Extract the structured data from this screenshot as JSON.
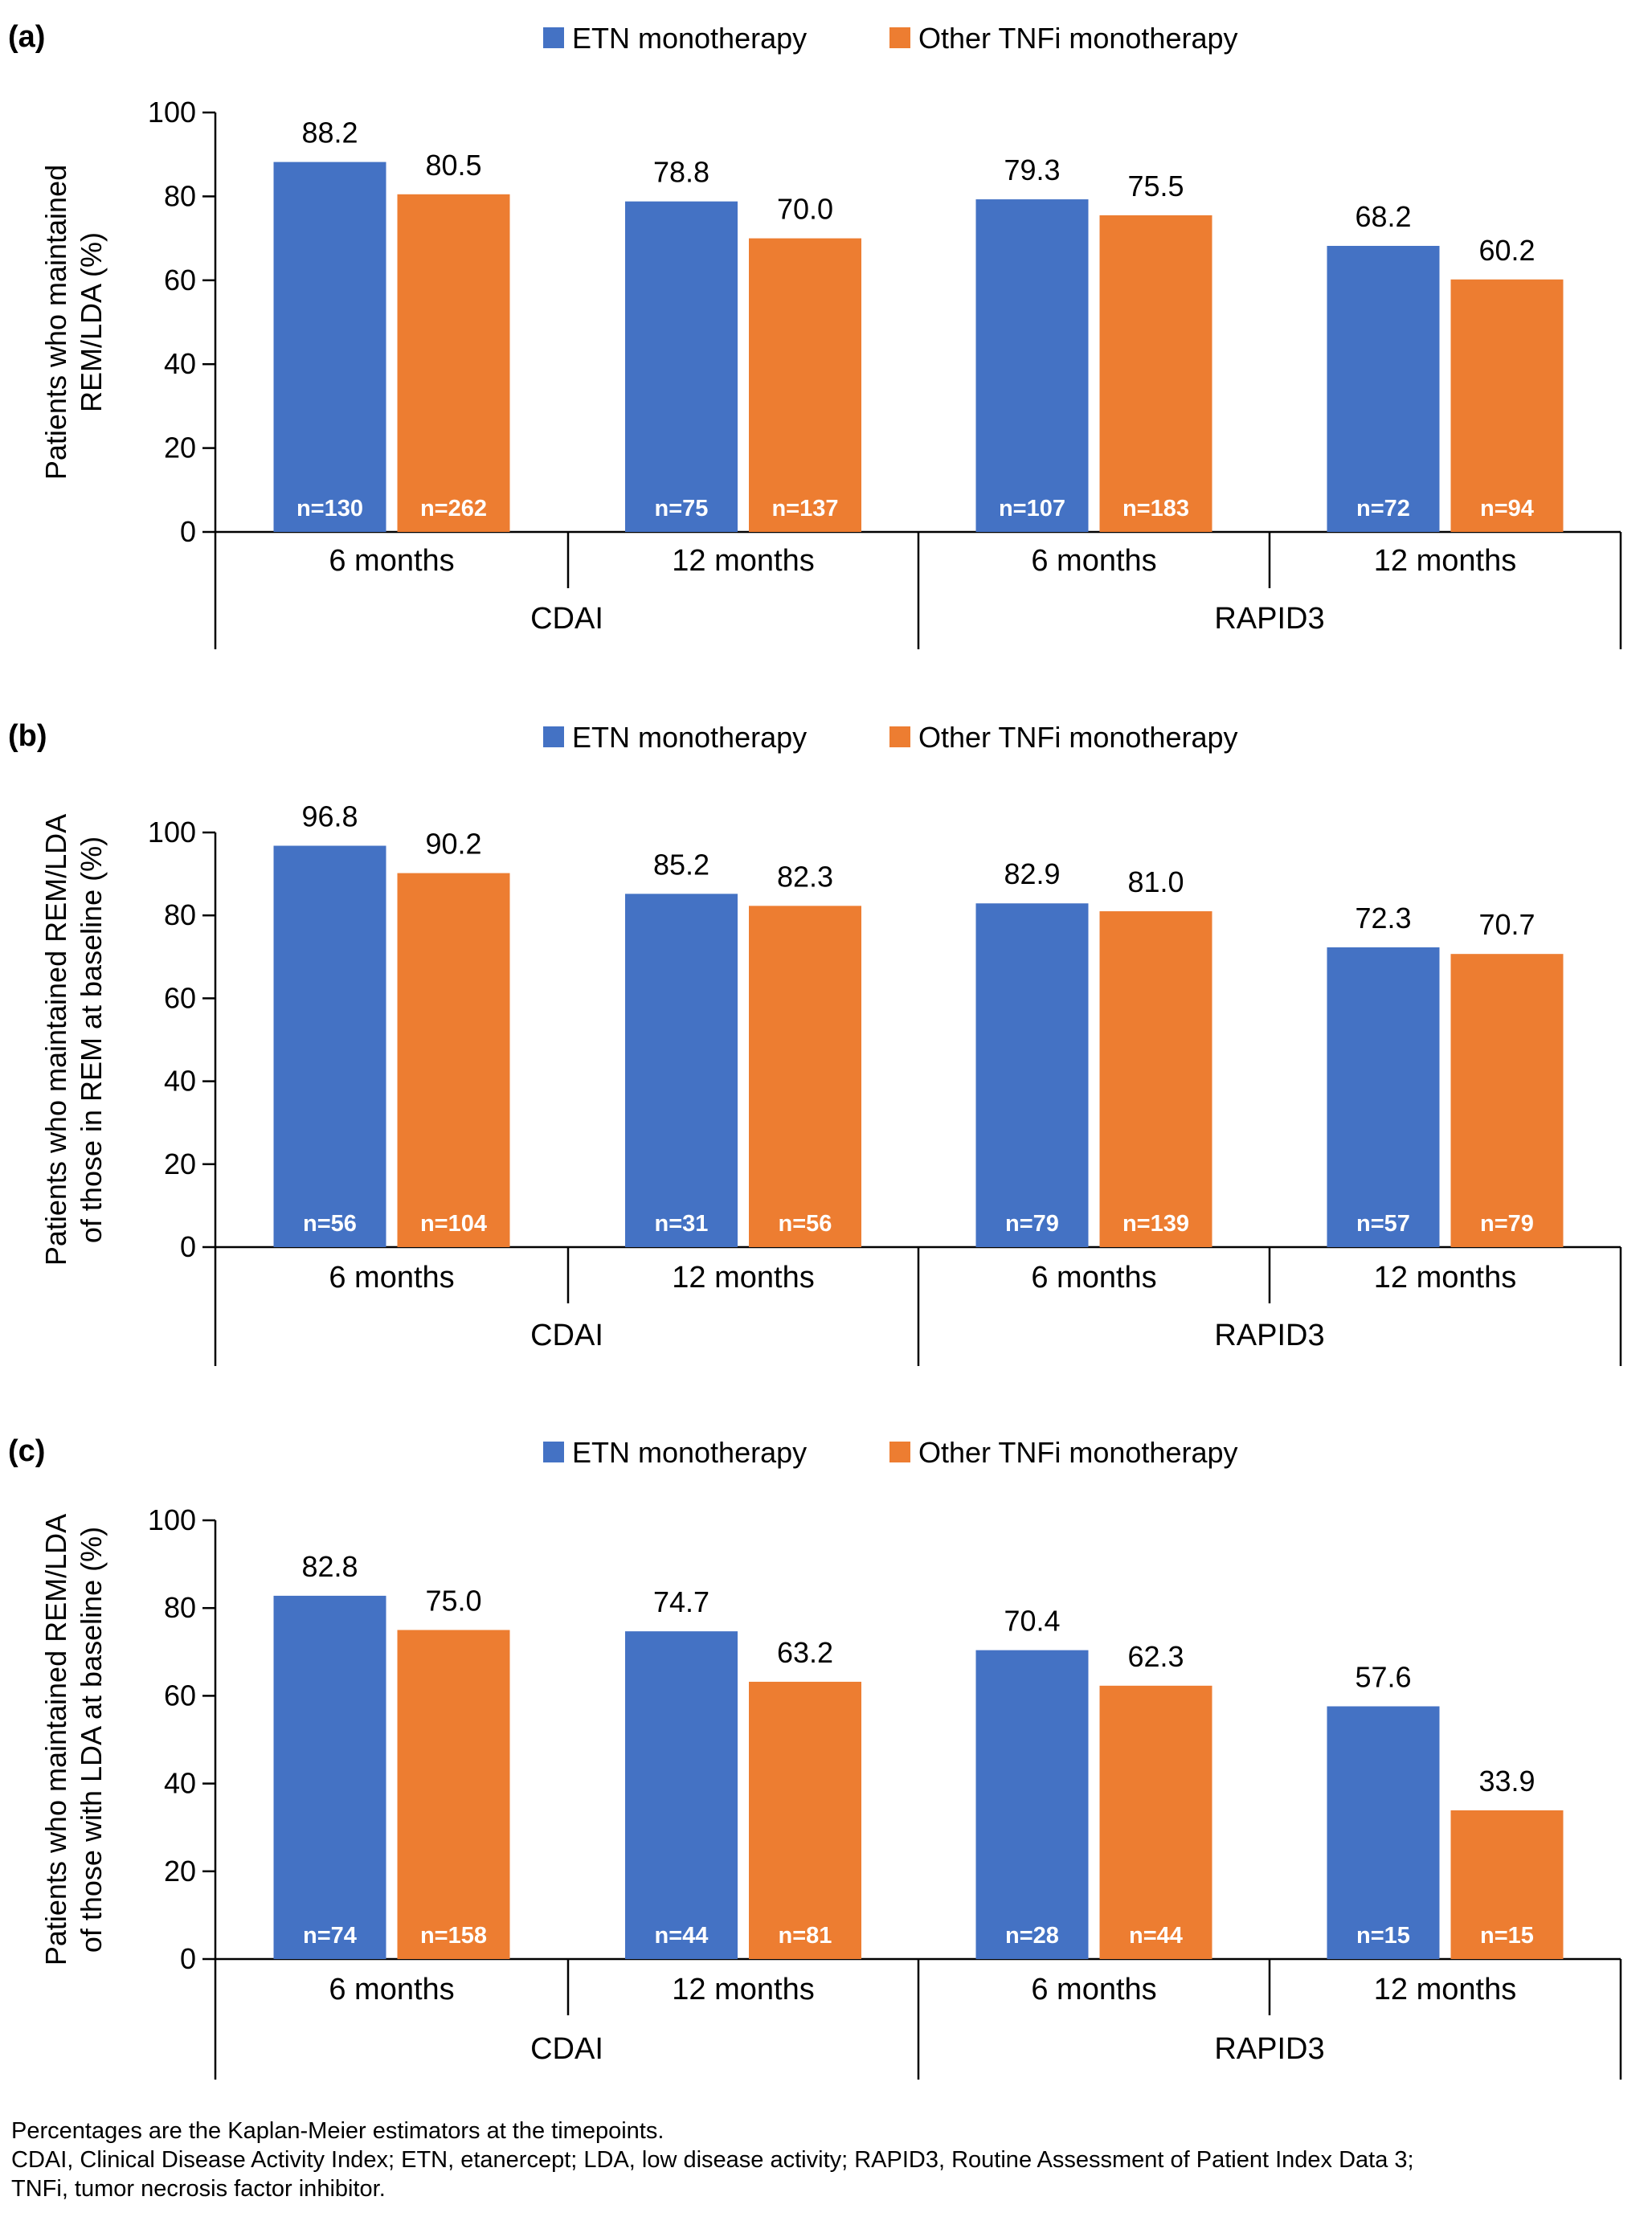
{
  "legend": {
    "etn": "ETN monotherapy",
    "other": "Other TNFi monotherapy"
  },
  "colors": {
    "etn": "#4472C4",
    "other": "#ED7D31",
    "axis": "#000000"
  },
  "chart_data": [
    {
      "type": "bar",
      "panel_label": "(a)",
      "ylabel_lines": [
        "Patients who maintained",
        "REM/LDA (%)"
      ],
      "ylim": [
        0,
        100
      ],
      "yticks": [
        0,
        20,
        40,
        60,
        80,
        100
      ],
      "groups": [
        "CDAI",
        "RAPID3"
      ],
      "categories": [
        "6 months",
        "12 months",
        "6 months",
        "12 months"
      ],
      "legend_position": "top-center",
      "grid": false,
      "series": [
        {
          "name": "ETN monotherapy",
          "values": [
            88.2,
            78.8,
            79.3,
            68.2
          ],
          "value_labels": [
            "88.2",
            "78.8",
            "79.3",
            "68.2"
          ],
          "n_labels": [
            "n=130",
            "n=75",
            "n=107",
            "n=72"
          ]
        },
        {
          "name": "Other TNFi monotherapy",
          "values": [
            80.5,
            70.0,
            75.5,
            60.2
          ],
          "value_labels": [
            "80.5",
            "70.0",
            "75.5",
            "60.2"
          ],
          "n_labels": [
            "n=262",
            "n=137",
            "n=183",
            "n=94"
          ]
        }
      ]
    },
    {
      "type": "bar",
      "panel_label": "(b)",
      "ylabel_lines": [
        "Patients who maintained REM/LDA",
        "of those in REM at baseline (%)"
      ],
      "ylim": [
        0,
        100
      ],
      "yticks": [
        0,
        20,
        40,
        60,
        80,
        100
      ],
      "groups": [
        "CDAI",
        "RAPID3"
      ],
      "categories": [
        "6 months",
        "12 months",
        "6 months",
        "12 months"
      ],
      "legend_position": "top-center",
      "grid": false,
      "series": [
        {
          "name": "ETN monotherapy",
          "values": [
            96.8,
            85.2,
            82.9,
            72.3
          ],
          "value_labels": [
            "96.8",
            "85.2",
            "82.9",
            "72.3"
          ],
          "n_labels": [
            "n=56",
            "n=31",
            "n=79",
            "n=57"
          ]
        },
        {
          "name": "Other TNFi monotherapy",
          "values": [
            90.2,
            82.3,
            81.0,
            70.7
          ],
          "value_labels": [
            "90.2",
            "82.3",
            "81.0",
            "70.7"
          ],
          "n_labels": [
            "n=104",
            "n=56",
            "n=139",
            "n=79"
          ]
        }
      ]
    },
    {
      "type": "bar",
      "panel_label": "(c)",
      "ylabel_lines": [
        "Patients who maintained REM/LDA",
        "of those with LDA at baseline (%)"
      ],
      "ylim": [
        0,
        100
      ],
      "yticks": [
        0,
        20,
        40,
        60,
        80,
        100
      ],
      "groups": [
        "CDAI",
        "RAPID3"
      ],
      "categories": [
        "6 months",
        "12 months",
        "6 months",
        "12 months"
      ],
      "legend_position": "top-center",
      "grid": false,
      "series": [
        {
          "name": "ETN monotherapy",
          "values": [
            82.8,
            74.7,
            70.4,
            57.6
          ],
          "value_labels": [
            "82.8",
            "74.7",
            "70.4",
            "57.6"
          ],
          "n_labels": [
            "n=74",
            "n=44",
            "n=28",
            "n=15"
          ]
        },
        {
          "name": "Other TNFi monotherapy",
          "values": [
            75.0,
            63.2,
            62.3,
            33.9
          ],
          "value_labels": [
            "75.0",
            "63.2",
            "62.3",
            "33.9"
          ],
          "n_labels": [
            "n=158",
            "n=81",
            "n=44",
            "n=15"
          ]
        }
      ]
    }
  ],
  "footnotes": [
    "Percentages are the Kaplan-Meier estimators at the timepoints.",
    "CDAI, Clinical Disease Activity Index; ETN, etanercept; LDA, low disease activity; RAPID3, Routine Assessment of Patient Index Data 3;",
    "TNFi, tumor necrosis factor inhibitor."
  ]
}
